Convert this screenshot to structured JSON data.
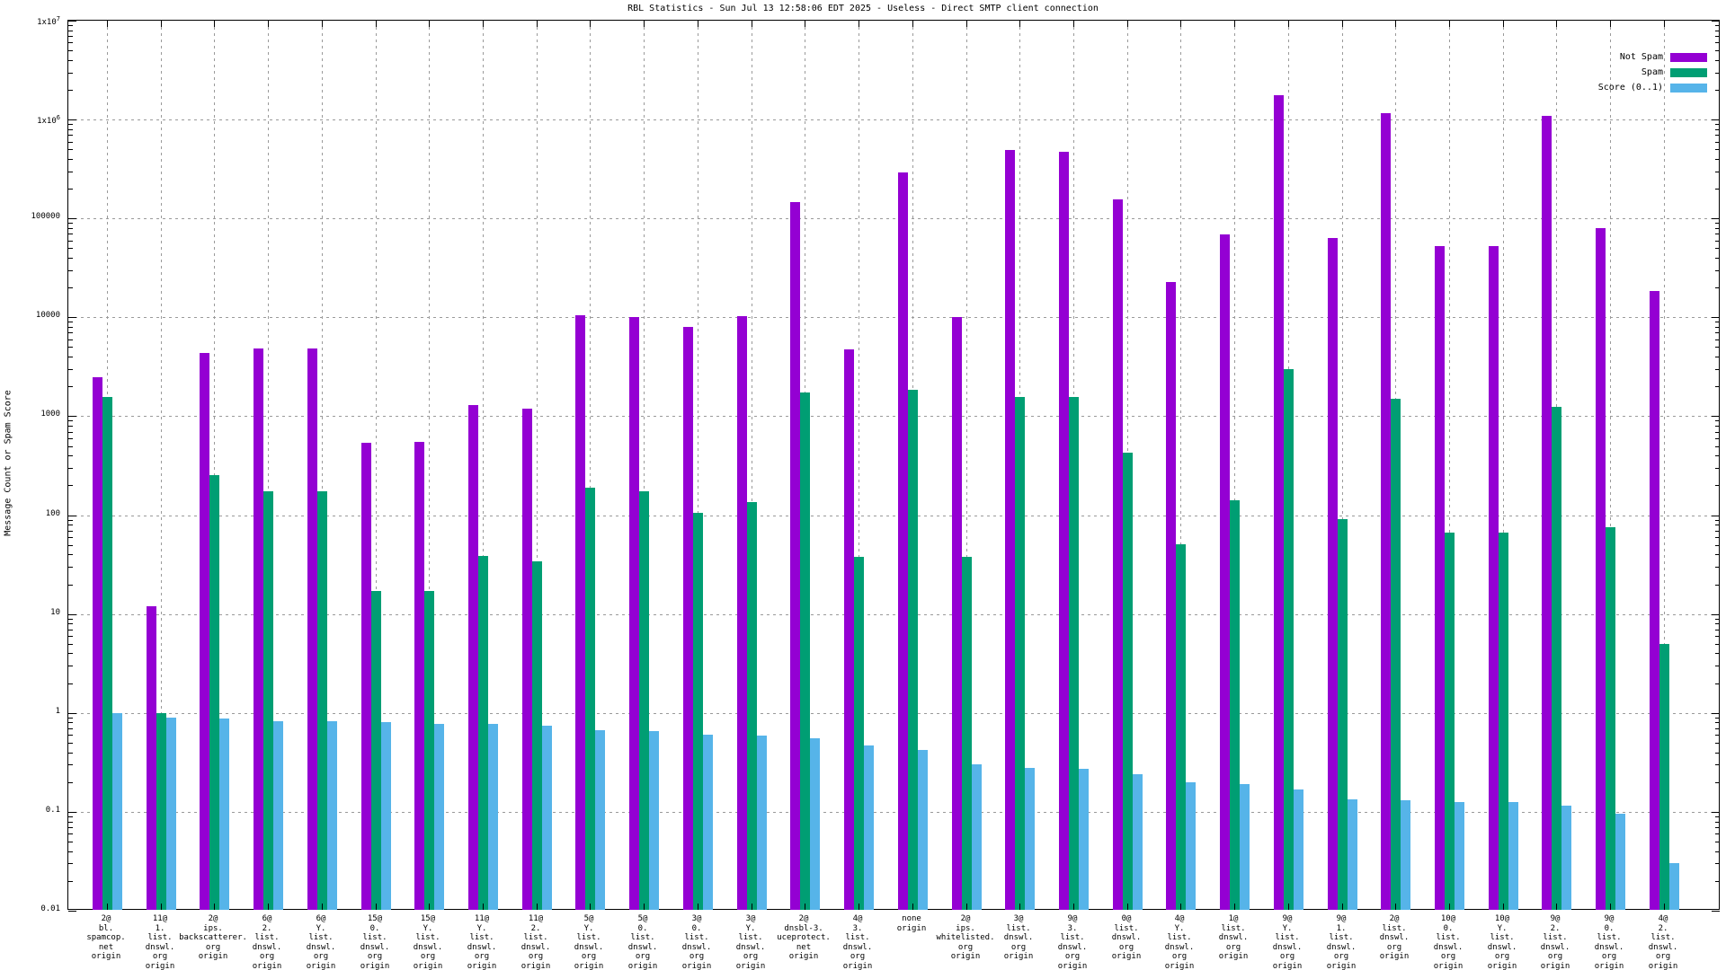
{
  "title": "RBL Statistics - Sun Jul 13 12:58:06 EDT 2025 - Useless - Direct SMTP client connection",
  "y_axis_title": "Message Count or Spam Score",
  "legend": {
    "position": "top-right",
    "items": [
      {
        "label": "Not Spam",
        "color": "#9400d3"
      },
      {
        "label": "Spam",
        "color": "#009e73"
      },
      {
        "label": "Score (0..1)",
        "color": "#56b4e9"
      }
    ]
  },
  "colors": {
    "not_spam": "#9400d3",
    "spam": "#009e73",
    "score": "#56b4e9",
    "grid": "#9a9a9a",
    "axis": "#000000",
    "background": "#ffffff"
  },
  "chart_data": {
    "type": "bar",
    "y_scale": "log",
    "ylim": [
      0.01,
      10000000
    ],
    "grid": true,
    "legend_position": "top-right",
    "title": "RBL Statistics - Sun Jul 13 12:58:06 EDT 2025 - Useless - Direct SMTP client connection",
    "xlabel": "",
    "ylabel": "Message Count or Spam Score",
    "y_ticks": [
      {
        "label": "1x10^7",
        "value": 10000000
      },
      {
        "label": "1x10^6",
        "value": 1000000
      },
      {
        "label": "100000",
        "value": 100000
      },
      {
        "label": "10000",
        "value": 10000
      },
      {
        "label": "1000",
        "value": 1000
      },
      {
        "label": "100",
        "value": 100
      },
      {
        "label": "10",
        "value": 10
      },
      {
        "label": "1",
        "value": 1
      },
      {
        "label": "0.1",
        "value": 0.1
      },
      {
        "label": "0.01",
        "value": 0.01
      }
    ],
    "categories": [
      [
        "2@",
        "bl.",
        "spamcop.",
        "net",
        "origin"
      ],
      [
        "11@",
        "1.",
        "list.",
        "dnswl.",
        "org",
        "origin"
      ],
      [
        "2@",
        "ips.",
        "backscatterer.",
        "org",
        "origin"
      ],
      [
        "6@",
        "2.",
        "list.",
        "dnswl.",
        "org",
        "origin"
      ],
      [
        "6@",
        "Y.",
        "list.",
        "dnswl.",
        "org",
        "origin"
      ],
      [
        "15@",
        "0.",
        "list.",
        "dnswl.",
        "org",
        "origin"
      ],
      [
        "15@",
        "Y.",
        "list.",
        "dnswl.",
        "org",
        "origin"
      ],
      [
        "11@",
        "Y.",
        "list.",
        "dnswl.",
        "org",
        "origin"
      ],
      [
        "11@",
        "2.",
        "list.",
        "dnswl.",
        "org",
        "origin"
      ],
      [
        "5@",
        "Y.",
        "list.",
        "dnswl.",
        "org",
        "origin"
      ],
      [
        "5@",
        "0.",
        "list.",
        "dnswl.",
        "org",
        "origin"
      ],
      [
        "3@",
        "0.",
        "list.",
        "dnswl.",
        "org",
        "origin"
      ],
      [
        "3@",
        "Y.",
        "list.",
        "dnswl.",
        "org",
        "origin"
      ],
      [
        "2@",
        "dnsbl-3.",
        "uceprotect.",
        "net",
        "origin"
      ],
      [
        "4@",
        "3.",
        "list.",
        "dnswl.",
        "org",
        "origin"
      ],
      [
        "none",
        "origin"
      ],
      [
        "2@",
        "ips.",
        "whitelisted.",
        "org",
        "origin"
      ],
      [
        "3@",
        "list.",
        "dnswl.",
        "org",
        "origin"
      ],
      [
        "9@",
        "3.",
        "list.",
        "dnswl.",
        "org",
        "origin"
      ],
      [
        "0@",
        "list.",
        "dnswl.",
        "org",
        "origin"
      ],
      [
        "4@",
        "Y.",
        "list.",
        "dnswl.",
        "org",
        "origin"
      ],
      [
        "1@",
        "list.",
        "dnswl.",
        "org",
        "origin"
      ],
      [
        "9@",
        "Y.",
        "list.",
        "dnswl.",
        "org",
        "origin"
      ],
      [
        "9@",
        "1.",
        "list.",
        "dnswl.",
        "org",
        "origin"
      ],
      [
        "2@",
        "list.",
        "dnswl.",
        "org",
        "origin"
      ],
      [
        "10@",
        "0.",
        "list.",
        "dnswl.",
        "org",
        "origin"
      ],
      [
        "10@",
        "Y.",
        "list.",
        "dnswl.",
        "org",
        "origin"
      ],
      [
        "9@",
        "2.",
        "list.",
        "dnswl.",
        "org",
        "origin"
      ],
      [
        "9@",
        "0.",
        "list.",
        "dnswl.",
        "org",
        "origin"
      ],
      [
        "4@",
        "2.",
        "list.",
        "dnswl.",
        "org",
        "origin"
      ]
    ],
    "series": [
      {
        "name": "Not Spam",
        "color": "#9400d3",
        "values": [
          2500,
          12,
          4400,
          4800,
          4800,
          540,
          550,
          1300,
          1200,
          10500,
          10000,
          8000,
          10200,
          145000,
          4700,
          290000,
          10000,
          490000,
          470000,
          155000,
          23000,
          69000,
          1750000,
          64000,
          1150000,
          52000,
          52000,
          1100000,
          80000,
          18500
        ]
      },
      {
        "name": "Spam",
        "color": "#009e73",
        "values": [
          1550,
          1.0,
          255,
          175,
          175,
          17,
          17,
          39,
          34,
          190,
          175,
          105,
          135,
          1750,
          38,
          1850,
          38,
          1550,
          1550,
          430,
          51,
          140,
          3000,
          92,
          1500,
          66,
          66,
          1250,
          75,
          5
        ]
      },
      {
        "name": "Score (0..1)",
        "color": "#56b4e9",
        "values": [
          1.0,
          0.9,
          0.88,
          0.83,
          0.82,
          0.8,
          0.78,
          0.78,
          0.75,
          0.67,
          0.66,
          0.6,
          0.59,
          0.56,
          0.47,
          0.42,
          0.3,
          0.28,
          0.27,
          0.24,
          0.2,
          0.19,
          0.17,
          0.135,
          0.13,
          0.125,
          0.125,
          0.115,
          0.095,
          0.03
        ]
      }
    ]
  }
}
